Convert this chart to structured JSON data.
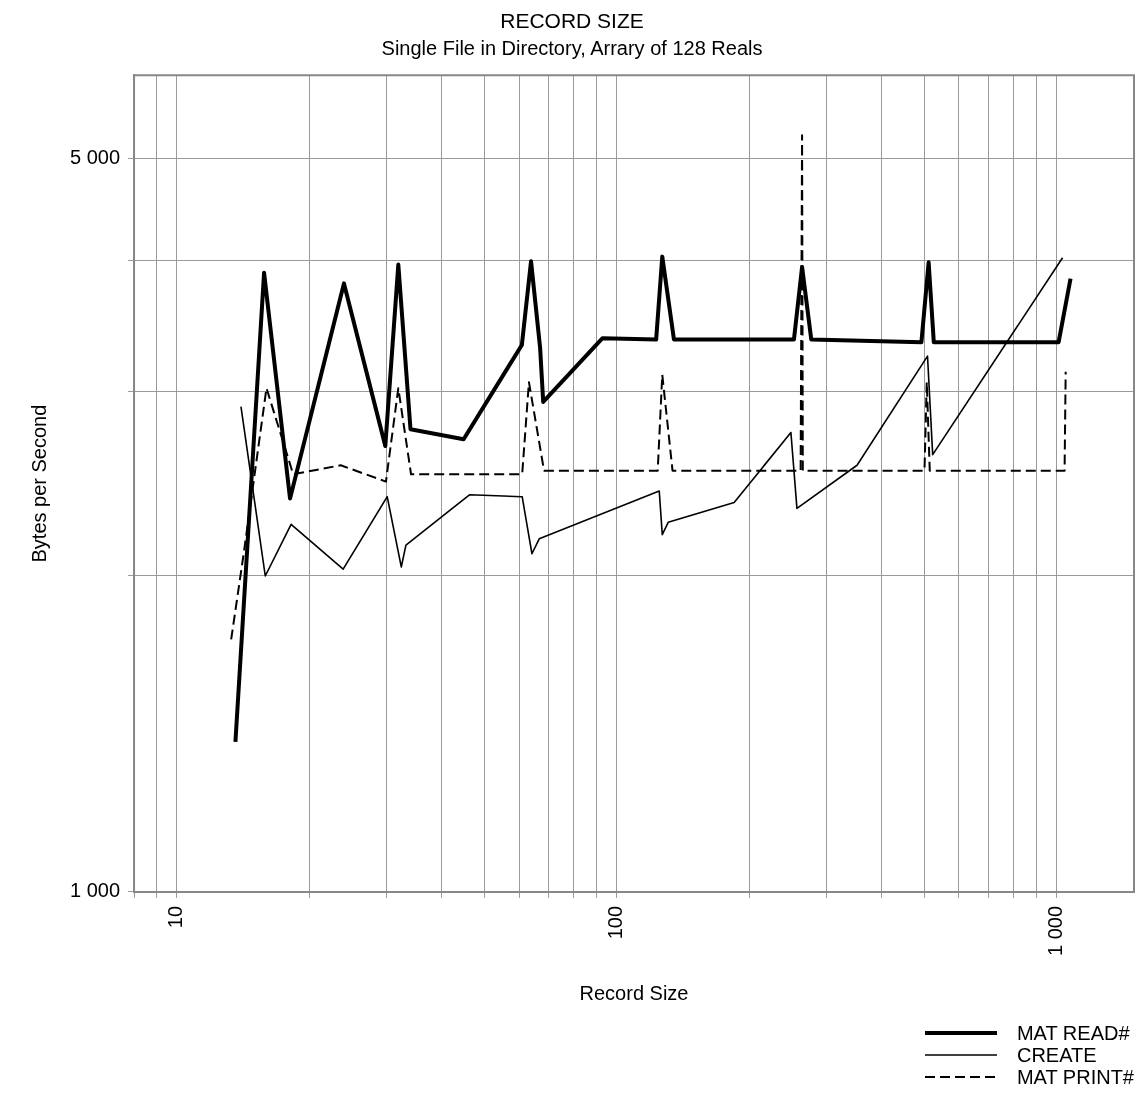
{
  "chart_data": {
    "type": "line",
    "title": "RECORD SIZE",
    "subtitle": "Single File in Directory, Arrary of 128 Reals",
    "xlabel": "Record Size",
    "ylabel": "Bytes per Second",
    "log": "xy",
    "grid": true,
    "legend": "bottom right",
    "marker": "none",
    "xlim": [
      8,
      1500
    ],
    "ylim": [
      1000,
      6000
    ],
    "xticks": [
      {
        "value": 8,
        "label": null
      },
      {
        "value": 9,
        "label": null
      },
      10,
      {
        "value": 20,
        "label": null
      },
      {
        "value": 30,
        "label": null
      },
      {
        "value": 40,
        "label": null
      },
      {
        "value": 50,
        "label": null
      },
      {
        "value": 60,
        "label": null
      },
      {
        "value": 70,
        "label": null
      },
      {
        "value": 80,
        "label": null
      },
      {
        "value": 90,
        "label": null
      },
      100,
      {
        "value": 200,
        "label": null
      },
      {
        "value": 300,
        "label": null
      },
      {
        "value": 400,
        "label": null
      },
      {
        "value": 500,
        "label": null
      },
      {
        "value": 600,
        "label": null
      },
      {
        "value": 700,
        "label": null
      },
      {
        "value": 800,
        "label": null
      },
      {
        "value": 900,
        "label": null
      },
      {
        "value": 1000,
        "label": "1 000"
      }
    ],
    "yticks": [
      {
        "value": 1000,
        "label": "1 000"
      },
      {
        "value": 2000,
        "label": null
      },
      {
        "value": 3000,
        "label": null
      },
      {
        "value": 4000,
        "label": null
      },
      {
        "value": 5000,
        "label": "5 000"
      }
    ],
    "series": [
      {
        "name": "MAT READ#",
        "color": "#000000",
        "line_style": "solid",
        "x": [
          13.6,
          15.8,
          18.1,
          24,
          29.8,
          31.9,
          34,
          44.9,
          60.9,
          63.9,
          67,
          68.1,
          92.9,
          123,
          127,
          135,
          253,
          264,
          277,
          493,
          512,
          526,
          1011,
          1076
        ],
        "values": [
          1390,
          3890,
          2370,
          3800,
          2660,
          3960,
          2760,
          2700,
          3320,
          3990,
          3300,
          2930,
          3370,
          3360,
          4030,
          3360,
          3360,
          3940,
          3360,
          3340,
          3980,
          3340,
          3340,
          3840
        ]
      },
      {
        "name": "CREATE",
        "color": "#000000",
        "line_style": "solid",
        "x": [
          14,
          15.9,
          18.2,
          23.9,
          30.1,
          32.4,
          33.2,
          46.3,
          61,
          64.2,
          66.7,
          125,
          127,
          131,
          185,
          249,
          257,
          352,
          509,
          523,
          1032
        ],
        "values": [
          2900,
          2000,
          2240,
          2030,
          2380,
          2040,
          2140,
          2390,
          2380,
          2100,
          2170,
          2410,
          2190,
          2250,
          2350,
          2740,
          2320,
          2550,
          3240,
          2610,
          4020
        ]
      },
      {
        "name": "MAT PRINT#",
        "color": "#000000",
        "line_style": "dashed",
        "x": [
          13.3,
          14.2,
          16,
          18.4,
          23.6,
          29.9,
          31.9,
          34.1,
          61,
          63.2,
          68.4,
          124,
          127,
          134,
          262,
          264,
          265,
          501,
          507,
          515,
          1043,
          1049
        ],
        "values": [
          1740,
          2100,
          3020,
          2500,
          2550,
          2460,
          3020,
          2500,
          2500,
          3060,
          2520,
          2520,
          3110,
          2520,
          2520,
          5260,
          2520,
          2520,
          3060,
          2520,
          2520,
          3130
        ]
      }
    ]
  }
}
